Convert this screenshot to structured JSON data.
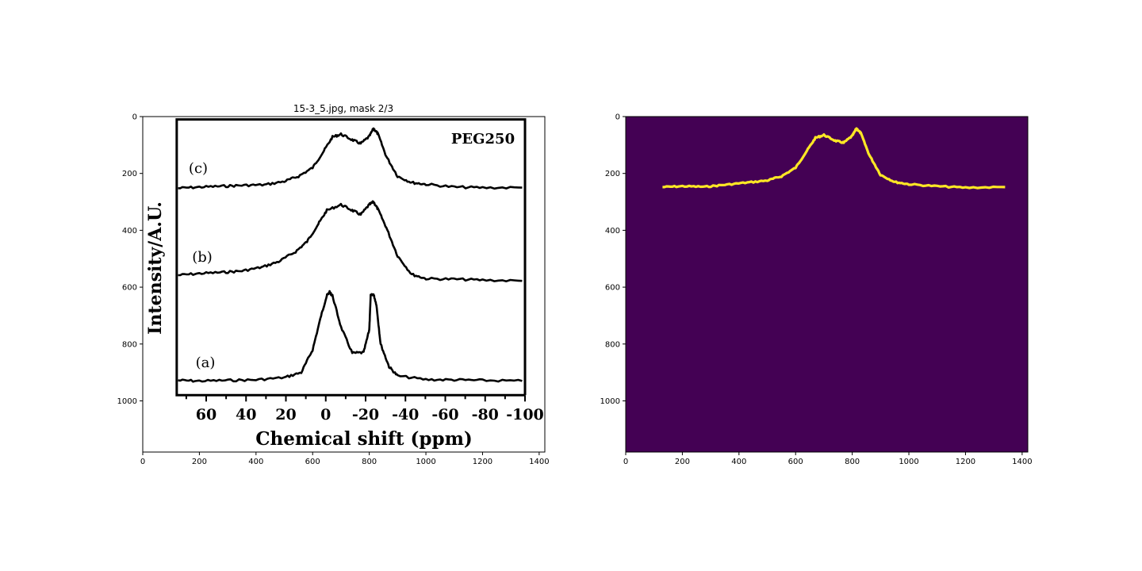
{
  "figure": {
    "title": "15-3_5.jpg, mask 2/3"
  },
  "chart_data": [
    {
      "type": "image",
      "panel": "left",
      "xlim": [
        0,
        1420
      ],
      "ylim": [
        1180,
        0
      ],
      "xticks": [
        0,
        200,
        400,
        600,
        800,
        1000,
        1200,
        1400
      ],
      "yticks": [
        0,
        200,
        400,
        600,
        800,
        1000
      ],
      "inner_figure": {
        "label": "PEG250",
        "ylabel": "Intensity/A.U.",
        "xlabel": "Chemical shift (ppm)",
        "xticks": [
          "60",
          "40",
          "20",
          "0",
          "-20",
          "-40",
          "-60",
          "-80",
          "-100"
        ],
        "curve_labels": [
          "(c)",
          "(b)",
          "(a)"
        ]
      },
      "series": [
        {
          "name": "(c)",
          "x": [
            125,
            200,
            280,
            350,
            430,
            500,
            550,
            600,
            640,
            670,
            700,
            740,
            770,
            800,
            815,
            830,
            860,
            900,
            950,
            1000,
            1100,
            1200,
            1340
          ],
          "y": [
            252,
            248,
            245,
            242,
            240,
            228,
            210,
            180,
            120,
            72,
            62,
            82,
            95,
            70,
            42,
            60,
            140,
            210,
            232,
            238,
            248,
            250,
            250
          ]
        },
        {
          "name": "(b)",
          "x": [
            125,
            200,
            280,
            350,
            420,
            480,
            540,
            580,
            620,
            650,
            700,
            740,
            770,
            800,
            815,
            830,
            860,
            900,
            950,
            1000,
            1100,
            1200,
            1340
          ],
          "y": [
            558,
            552,
            548,
            543,
            530,
            510,
            475,
            440,
            378,
            330,
            310,
            330,
            345,
            310,
            300,
            325,
            390,
            490,
            555,
            570,
            572,
            575,
            578
          ],
          "labels_on_chart": true
        },
        {
          "name": "(a)",
          "x": [
            125,
            200,
            300,
            400,
            500,
            560,
            600,
            630,
            650,
            660,
            670,
            700,
            740,
            780,
            800,
            805,
            815,
            825,
            840,
            870,
            900,
            1000,
            1100,
            1200,
            1340
          ],
          "y": [
            928,
            930,
            928,
            926,
            918,
            900,
            820,
            700,
            630,
            618,
            630,
            740,
            832,
            830,
            750,
            630,
            625,
            660,
            800,
            880,
            912,
            925,
            926,
            928,
            930
          ]
        }
      ]
    },
    {
      "type": "image",
      "panel": "right",
      "xlim": [
        0,
        1420
      ],
      "ylim": [
        1180,
        0
      ],
      "xticks": [
        0,
        200,
        400,
        600,
        800,
        1000,
        1200,
        1400
      ],
      "yticks": [
        0,
        200,
        400,
        600,
        800,
        1000
      ],
      "background_color": "#440154",
      "mask_color": "#fde725",
      "series": [
        {
          "name": "mask",
          "x": [
            130,
            200,
            280,
            350,
            430,
            500,
            550,
            600,
            640,
            670,
            700,
            740,
            770,
            800,
            815,
            830,
            860,
            900,
            950,
            1000,
            1100,
            1200,
            1340
          ],
          "y": [
            248,
            245,
            247,
            240,
            232,
            225,
            210,
            180,
            120,
            75,
            65,
            85,
            92,
            68,
            42,
            58,
            135,
            205,
            230,
            238,
            245,
            250,
            248
          ]
        }
      ]
    }
  ]
}
